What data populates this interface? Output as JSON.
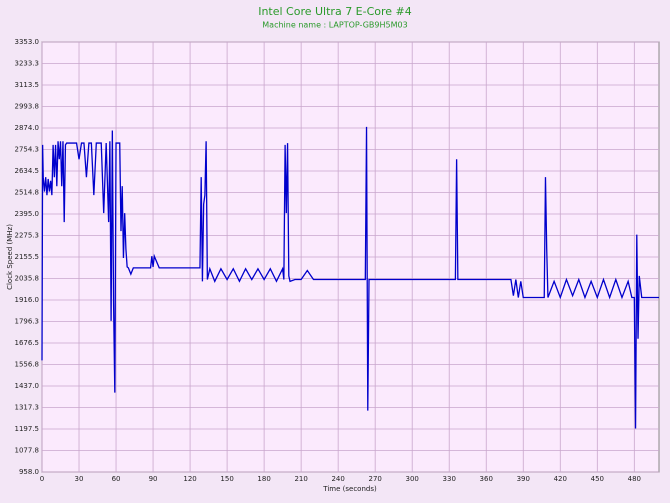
{
  "chart_data": {
    "type": "line",
    "title": "Intel Core Ultra 7 E-Core #4",
    "subtitle": "Machine name : LAPTOP-GB9H5M03",
    "xlabel": "Time (seconds)",
    "ylabel": "Clock Speed (MHz)",
    "xlim": [
      0,
      500
    ],
    "xticks": [
      0,
      30,
      60,
      90,
      120,
      150,
      180,
      210,
      240,
      270,
      300,
      330,
      360,
      390,
      420,
      450,
      480
    ],
    "ylim": [
      958,
      3353
    ],
    "yticks": [
      {
        "value": 958,
        "label": "958.0"
      },
      {
        "value": 1077.75,
        "label": "1077.8"
      },
      {
        "value": 1197.5,
        "label": "1197.5"
      },
      {
        "value": 1317.25,
        "label": "1317.3"
      },
      {
        "value": 1437,
        "label": "1437.0"
      },
      {
        "value": 1556.75,
        "label": "1556.8"
      },
      {
        "value": 1676.5,
        "label": "1676.5"
      },
      {
        "value": 1796.25,
        "label": "1796.3"
      },
      {
        "value": 1916,
        "label": "1916.0"
      },
      {
        "value": 2035.75,
        "label": "2035.8"
      },
      {
        "value": 2155.5,
        "label": "2155.5"
      },
      {
        "value": 2275.25,
        "label": "2275.3"
      },
      {
        "value": 2395,
        "label": "2395.0"
      },
      {
        "value": 2514.75,
        "label": "2514.8"
      },
      {
        "value": 2634.5,
        "label": "2634.5"
      },
      {
        "value": 2754.25,
        "label": "2754.3"
      },
      {
        "value": 2874,
        "label": "2874.0"
      },
      {
        "value": 2993.75,
        "label": "2993.8"
      },
      {
        "value": 3113.5,
        "label": "3113.5"
      },
      {
        "value": 3233.25,
        "label": "3233.3"
      },
      {
        "value": 3353,
        "label": "3353.0"
      }
    ],
    "grid": true,
    "x": [
      0,
      0.5,
      1,
      2,
      3,
      4,
      5,
      6,
      7,
      8,
      9,
      10,
      11,
      12,
      13,
      14,
      15,
      16,
      17,
      18,
      19,
      20,
      21,
      22,
      24,
      26,
      28,
      30,
      32,
      34,
      36,
      38,
      40,
      42,
      44,
      46,
      48,
      50,
      52,
      54,
      55,
      56,
      57,
      58,
      59,
      60,
      61,
      62,
      63,
      64,
      65,
      66,
      67,
      68,
      69,
      70,
      72,
      74,
      76,
      78,
      80,
      85,
      88,
      89,
      90,
      91,
      95,
      100,
      110,
      120,
      128,
      129,
      130,
      131,
      132,
      133,
      134,
      136,
      140,
      145,
      150,
      155,
      160,
      165,
      170,
      175,
      180,
      185,
      190,
      195,
      196,
      197,
      198,
      199,
      200,
      201,
      205,
      210,
      215,
      220,
      230,
      240,
      250,
      260,
      262,
      263,
      264,
      265,
      266,
      270,
      280,
      290,
      300,
      310,
      320,
      330,
      334,
      335,
      336,
      337,
      340,
      350,
      360,
      370,
      380,
      382,
      384,
      386,
      388,
      390,
      395,
      400,
      405,
      407,
      408,
      409,
      410,
      415,
      420,
      425,
      430,
      435,
      440,
      445,
      450,
      455,
      460,
      465,
      470,
      475,
      478,
      480,
      481,
      482,
      483,
      484,
      486,
      490,
      500
    ],
    "series": [
      {
        "name": "E-Core #4",
        "color": "#0000cc",
        "values": [
          1580,
          2780,
          2600,
          2520,
          2600,
          2500,
          2590,
          2520,
          2580,
          2500,
          2780,
          2600,
          2780,
          2550,
          2800,
          2700,
          2800,
          2550,
          2800,
          2350,
          2780,
          2790,
          2790,
          2790,
          2790,
          2790,
          2790,
          2700,
          2790,
          2790,
          2600,
          2790,
          2790,
          2500,
          2790,
          2790,
          2790,
          2400,
          2790,
          2350,
          2800,
          1800,
          2860,
          1900,
          1400,
          2790,
          2790,
          2790,
          2790,
          2300,
          2550,
          2150,
          2400,
          2200,
          2100,
          2095,
          2060,
          2095,
          2095,
          2095,
          2095,
          2095,
          2095,
          2160,
          2100,
          2160,
          2095,
          2095,
          2095,
          2095,
          2095,
          2600,
          2020,
          2450,
          2500,
          2800,
          2030,
          2090,
          2020,
          2090,
          2030,
          2090,
          2020,
          2090,
          2030,
          2090,
          2030,
          2090,
          2020,
          2090,
          2030,
          2780,
          2400,
          2790,
          2050,
          2020,
          2030,
          2030,
          2080,
          2030,
          2030,
          2030,
          2030,
          2030,
          2030,
          2880,
          1300,
          2030,
          2030,
          2030,
          2030,
          2030,
          2030,
          2030,
          2030,
          2030,
          2030,
          2030,
          2700,
          2030,
          2030,
          2030,
          2030,
          2030,
          2030,
          1940,
          2030,
          1930,
          2020,
          1930,
          1930,
          1930,
          1930,
          1930,
          2600,
          2200,
          1930,
          2020,
          1930,
          2030,
          1940,
          2030,
          1930,
          2020,
          1930,
          2030,
          1930,
          2030,
          1930,
          2020,
          1930,
          1930,
          1200,
          2280,
          1700,
          2050,
          1930,
          1930,
          1930
        ]
      }
    ]
  }
}
